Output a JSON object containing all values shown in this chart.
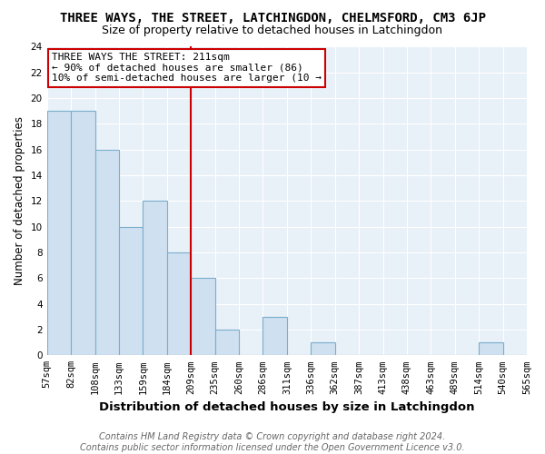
{
  "title": "THREE WAYS, THE STREET, LATCHINGDON, CHELMSFORD, CM3 6JP",
  "subtitle": "Size of property relative to detached houses in Latchingdon",
  "xlabel": "Distribution of detached houses by size in Latchingdon",
  "ylabel": "Number of detached properties",
  "categories": [
    "57sqm",
    "82sqm",
    "108sqm",
    "133sqm",
    "159sqm",
    "184sqm",
    "209sqm",
    "235sqm",
    "260sqm",
    "286sqm",
    "311sqm",
    "336sqm",
    "362sqm",
    "387sqm",
    "413sqm",
    "438sqm",
    "463sqm",
    "489sqm",
    "514sqm",
    "540sqm",
    "565sqm"
  ],
  "values": [
    19,
    19,
    16,
    10,
    12,
    8,
    6,
    2,
    0,
    3,
    0,
    1,
    0,
    0,
    0,
    0,
    0,
    0,
    1,
    0
  ],
  "bar_color": "#cfe0f0",
  "bar_edge_color": "#7aaecc",
  "vline_x": 6,
  "vline_color": "#cc0000",
  "annotation_line1": "THREE WAYS THE STREET: 211sqm",
  "annotation_line2": "← 90% of detached houses are smaller (86)",
  "annotation_line3": "10% of semi-detached houses are larger (10 →",
  "annotation_box_edge_color": "#cc0000",
  "footer_text": "Contains HM Land Registry data © Crown copyright and database right 2024.\nContains public sector information licensed under the Open Government Licence v3.0.",
  "ylim": [
    0,
    24
  ],
  "yticks": [
    0,
    2,
    4,
    6,
    8,
    10,
    12,
    14,
    16,
    18,
    20,
    22,
    24
  ],
  "title_fontsize": 10,
  "subtitle_fontsize": 9,
  "xlabel_fontsize": 9.5,
  "ylabel_fontsize": 8.5,
  "tick_fontsize": 7.5,
  "footer_fontsize": 7,
  "annotation_fontsize": 8,
  "fig_bg_color": "#ffffff",
  "plot_bg_color": "#e8f0f8"
}
